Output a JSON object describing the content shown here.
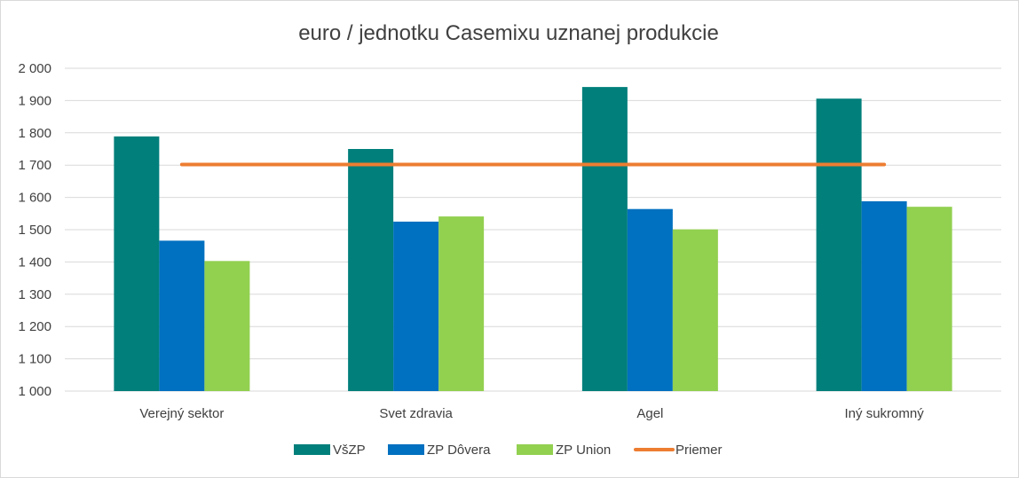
{
  "chart_data": {
    "type": "bar",
    "title": "euro / jednotku Casemixu uznanej produkcie",
    "categories": [
      "Verejný sektor",
      "Svet zdravia",
      "Agel",
      "Iný sukromný"
    ],
    "series": [
      {
        "name": "VšZP",
        "color": "#007f7b",
        "values": [
          1789,
          1750,
          1942,
          1906
        ]
      },
      {
        "name": "ZP Dôvera",
        "color": "#0070c0",
        "values": [
          1466,
          1525,
          1564,
          1588
        ]
      },
      {
        "name": "ZP Union",
        "color": "#92d050",
        "values": [
          1403,
          1541,
          1501,
          1571
        ]
      }
    ],
    "line_series": {
      "name": "Priemer",
      "color": "#ed7d31",
      "value": 1702,
      "type": "line"
    },
    "ylim": [
      1000,
      2000
    ],
    "yticks": [
      1000,
      1100,
      1200,
      1300,
      1400,
      1500,
      1600,
      1700,
      1800,
      1900,
      2000
    ],
    "ytick_labels": [
      "1 000",
      "1 100",
      "1 200",
      "1 300",
      "1 400",
      "1 500",
      "1 600",
      "1 700",
      "1 800",
      "1 900",
      "2 000"
    ],
    "grid": true,
    "legend_position": "bottom"
  }
}
